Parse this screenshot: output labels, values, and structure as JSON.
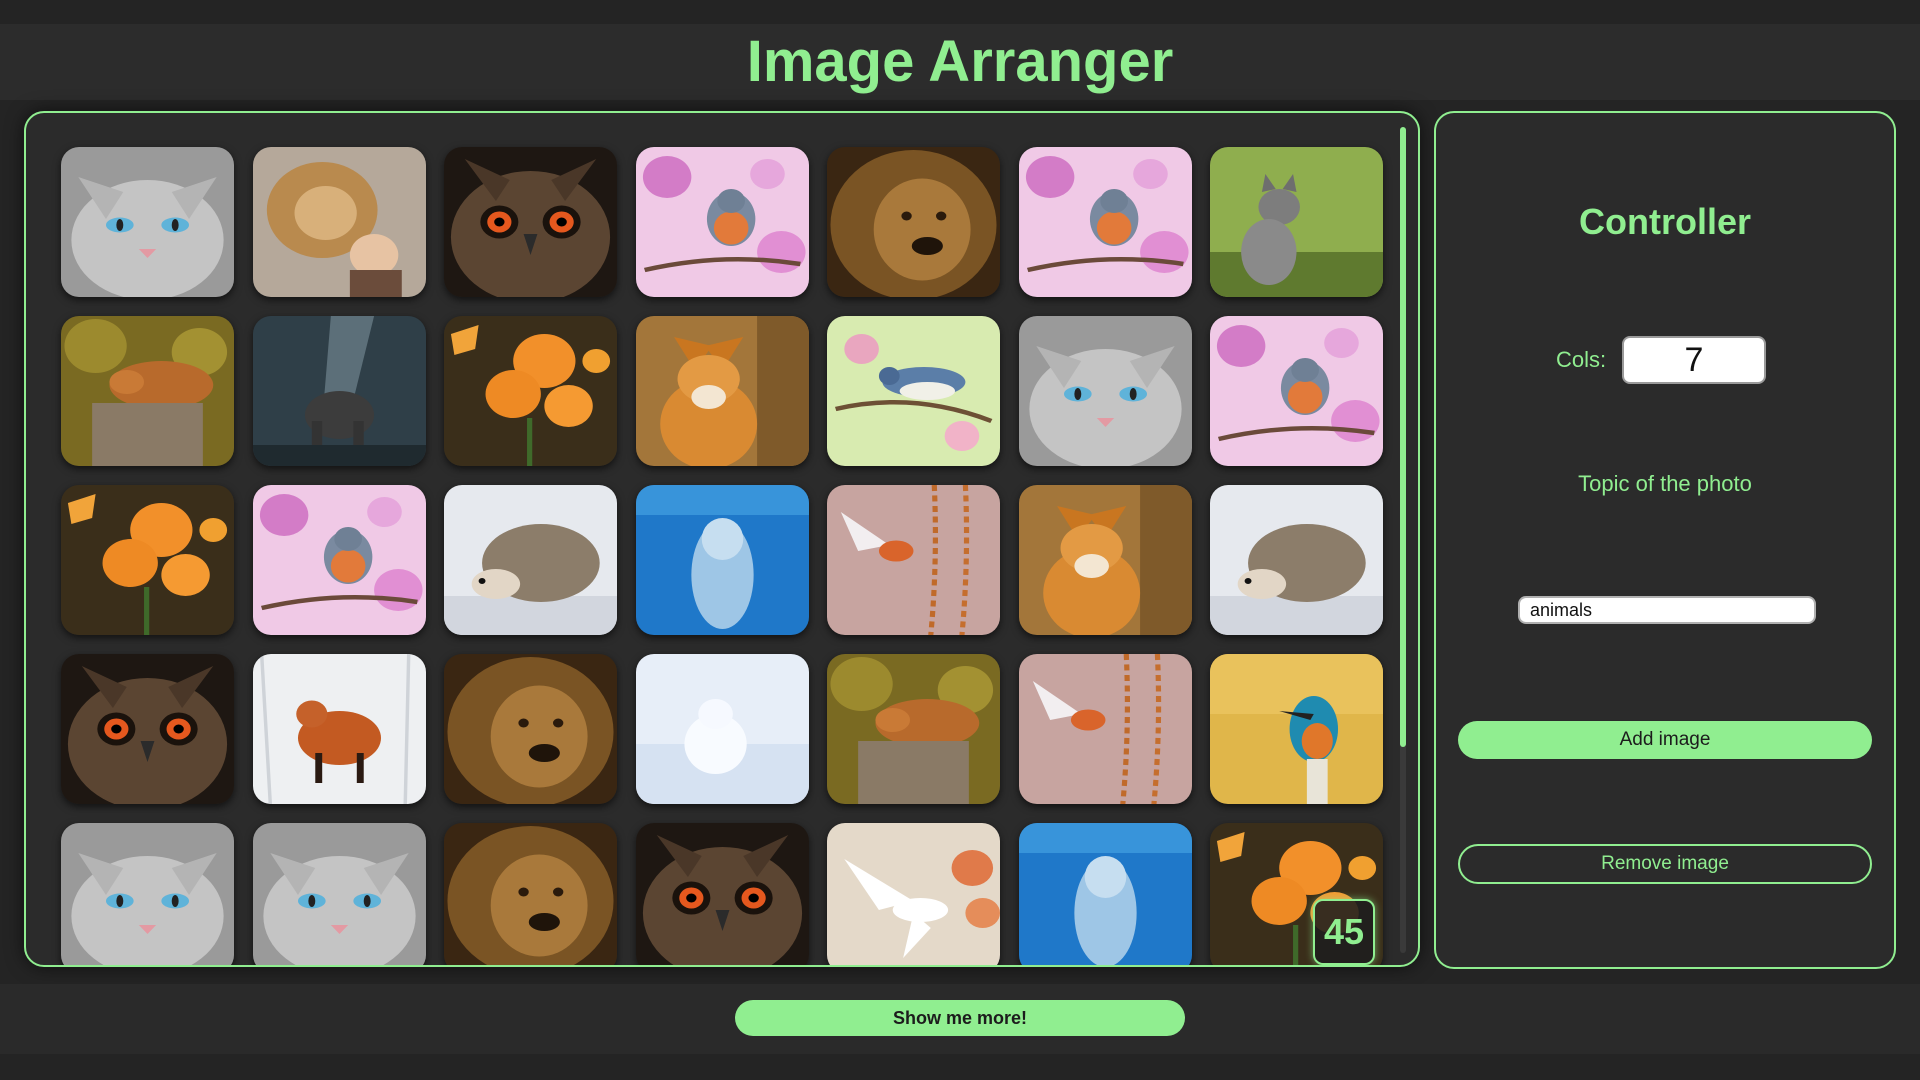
{
  "app": {
    "title": "Image Arranger"
  },
  "gallery": {
    "image_count_label": "45",
    "tiles": [
      {
        "subject": "cat"
      },
      {
        "subject": "lion-girl"
      },
      {
        "subject": "owl"
      },
      {
        "subject": "robin"
      },
      {
        "subject": "lion"
      },
      {
        "subject": "robin"
      },
      {
        "subject": "kitten"
      },
      {
        "subject": "sleeping-fox"
      },
      {
        "subject": "elephant"
      },
      {
        "subject": "flowers"
      },
      {
        "subject": "fox"
      },
      {
        "subject": "nuthatch"
      },
      {
        "subject": "cat"
      },
      {
        "subject": "robin"
      },
      {
        "subject": "flowers"
      },
      {
        "subject": "robin"
      },
      {
        "subject": "hedgehog"
      },
      {
        "subject": "dolphin"
      },
      {
        "subject": "flying-bird"
      },
      {
        "subject": "fox"
      },
      {
        "subject": "hedgehog"
      },
      {
        "subject": "owl"
      },
      {
        "subject": "snow-fox"
      },
      {
        "subject": "lion"
      },
      {
        "subject": "arctic-fox"
      },
      {
        "subject": "sleeping-fox"
      },
      {
        "subject": "flying-bird"
      },
      {
        "subject": "kingfisher"
      },
      {
        "subject": "cat"
      },
      {
        "subject": "cat"
      },
      {
        "subject": "lion"
      },
      {
        "subject": "owl"
      },
      {
        "subject": "dove"
      },
      {
        "subject": "dolphin"
      },
      {
        "subject": "flowers"
      }
    ]
  },
  "controller": {
    "title": "Controller",
    "cols_label": "Cols:",
    "cols_value": "7",
    "topic_label": "Topic of the photo",
    "topic_value": "animals",
    "add_label": "Add image",
    "remove_label": "Remove image"
  },
  "footer": {
    "more_label": "Show me more!"
  },
  "colors": {
    "accent": "#90ee90",
    "background": "#242424",
    "panel": "#2b2b2b"
  }
}
